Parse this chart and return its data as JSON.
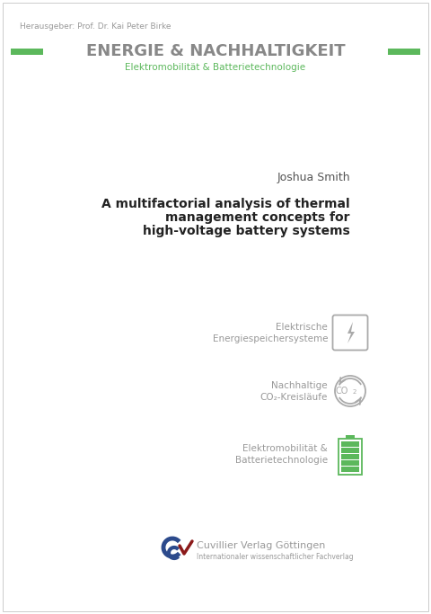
{
  "bg_color": "#ffffff",
  "herausgeber_text": "Herausgeber: Prof. Dr. Kai Peter Birke",
  "herausgeber_color": "#999999",
  "herausgeber_fontsize": 6.5,
  "series_title": "ENERGIE & NACHHALTIGKEIT",
  "series_title_color": "#888888",
  "series_subtitle": "Elektromobilität & Batterietechnologie",
  "series_subtitle_color": "#5cb85c",
  "green_color": "#5cb85c",
  "author_text": "Joshua Smith",
  "author_color": "#555555",
  "author_fontsize": 9,
  "book_title_line1": "A multifactorial analysis of thermal",
  "book_title_line2": "management concepts for",
  "book_title_line3": "high-voltage battery systems",
  "book_title_color": "#222222",
  "book_title_fontsize": 10,
  "icon1_label1": "Elektrische",
  "icon1_label2": "Energiespeichersysteme",
  "icon2_label1": "Nachhaltige",
  "icon2_label2": "CO₂-Kreisläufe",
  "icon3_label1": "Elektromobilität &",
  "icon3_label2": "Batterietechnologie",
  "icon_label_color": "#999999",
  "icon_label_fontsize": 7.5,
  "publisher_name": "Cuvillier Verlag Göttingen",
  "publisher_subtitle": "Internationaler wissenschaftlicher Fachverlag",
  "publisher_color": "#999999",
  "publisher_name_fontsize": 8,
  "publisher_sub_fontsize": 5.5,
  "border_color": "#cccccc",
  "icon_gray": "#aaaaaa",
  "navy": "#2c4a8c",
  "red": "#8b1a1a"
}
